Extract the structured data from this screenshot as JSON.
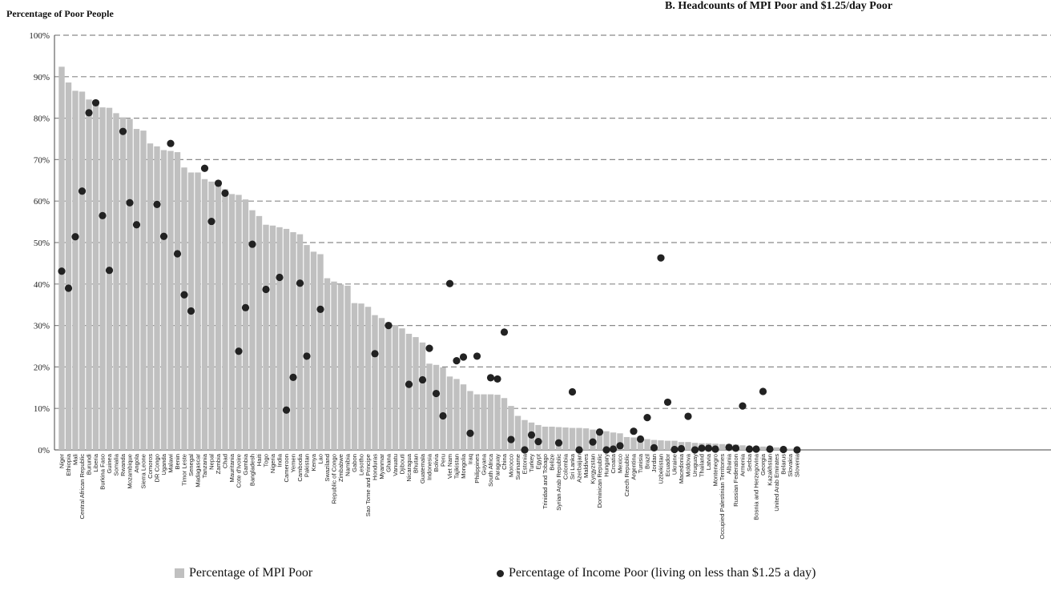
{
  "chart_data": {
    "type": "bar",
    "title": "B. Headcounts of MPI Poor and $1.25/day Poor",
    "ylabel": "Percentage of Poor People",
    "xlabel": "",
    "ylim": [
      0,
      100
    ],
    "yticks": [
      "0%",
      "10%",
      "20%",
      "30%",
      "40%",
      "50%",
      "60%",
      "70%",
      "80%",
      "90%",
      "100%"
    ],
    "grid": "horizontal dashed",
    "legend_position": "bottom",
    "bar_color": "#c0c0c0",
    "dot_color": "#222222",
    "categories": [
      "Niger",
      "Ethiopia",
      "Mali",
      "Central African Republic",
      "Burundi",
      "Liberia",
      "Burkina Faso",
      "Guinea",
      "Somalia",
      "Rwanda",
      "Mozambique",
      "Angola",
      "Sierra Leone",
      "Comoros",
      "DR Congo",
      "Uganda",
      "Malawi",
      "Benin",
      "Timor Leste",
      "Senegal",
      "Madagascar",
      "Tanzania",
      "Nepal",
      "Zambia",
      "Chad",
      "Mauritania",
      "Cote d'Ivoire",
      "Gambia",
      "Bangladesh",
      "Haiti",
      "Togo",
      "Nigeria",
      "India",
      "Cameroon",
      "Yemen",
      "Cambodia",
      "Pakistan",
      "Kenya",
      "Lao",
      "Swaziland",
      "Republic of Congo",
      "Zimbabwe",
      "Namibia",
      "Gabon",
      "Lesotho",
      "Sao Tome and Principe",
      "Honduras",
      "Myanmar",
      "Ghana",
      "Vanuatu",
      "Djibouti",
      "Nicaragua",
      "Bhutan",
      "Guatemala",
      "Indonesia",
      "Bolivia",
      "Peru",
      "Viet Nam",
      "Tajikistan",
      "Mongolia",
      "Iraq",
      "Philippines",
      "Guyana",
      "South Africa",
      "Paraguay",
      "China",
      "Morocco",
      "Suriname",
      "Estonia",
      "Turkey",
      "Egypt",
      "Trinidad and Tobago",
      "Belize",
      "Syrian Arab Republic",
      "Colombia",
      "Sri Lanka",
      "Azerbaijan",
      "Maldives",
      "Kyrgyzstan",
      "Dominican Republic",
      "Hungary",
      "Croatia",
      "Mexico",
      "Czech Republic",
      "Argentina",
      "Tunisia",
      "Brazil",
      "Jordan",
      "Uzbekistan",
      "Ecuador",
      "Ukraine",
      "Macedonia",
      "Moldova",
      "Uruguay",
      "Thailand",
      "Latvia",
      "Montenegro",
      "Occupied Palestinian Territories",
      "Albania",
      "Russian Federation",
      "Armenia",
      "Serbia",
      "Bosnia and Herzegovina",
      "Georgia",
      "Kazakhstan",
      "United Arab Emirates",
      "Belarus",
      "Slovakia",
      "Slovenia"
    ],
    "series": [
      {
        "name": "Percentage of MPI Poor",
        "type": "bar",
        "values": [
          92.4,
          88.6,
          86.6,
          86.4,
          84.5,
          83.9,
          82.6,
          82.5,
          81.2,
          80.2,
          79.8,
          77.4,
          77.0,
          73.9,
          73.2,
          72.3,
          72.1,
          71.8,
          68.1,
          66.9,
          66.9,
          65.3,
          64.7,
          64.2,
          62.9,
          61.7,
          61.5,
          60.4,
          57.8,
          56.4,
          54.3,
          54.1,
          53.7,
          53.3,
          52.5,
          52.0,
          49.4,
          47.8,
          47.2,
          41.4,
          40.6,
          39.9,
          39.6,
          35.4,
          35.3,
          34.5,
          32.5,
          31.8,
          30.8,
          30.1,
          29.3,
          28.0,
          27.2,
          25.9,
          20.8,
          20.5,
          19.9,
          17.7,
          17.1,
          15.8,
          14.2,
          13.4,
          13.4,
          13.4,
          13.3,
          12.5,
          10.6,
          8.2,
          7.2,
          6.6,
          6.0,
          5.6,
          5.6,
          5.5,
          5.4,
          5.3,
          5.3,
          5.2,
          4.9,
          4.6,
          4.5,
          4.2,
          4.0,
          3.1,
          3.0,
          2.8,
          2.6,
          2.4,
          2.3,
          2.2,
          2.2,
          1.9,
          1.9,
          1.7,
          1.6,
          1.6,
          1.5,
          1.4,
          1.4,
          1.3,
          1.1,
          0.8,
          0.8,
          0.8,
          0.6,
          0.6,
          0.4,
          0.3,
          0.0
        ]
      },
      {
        "name": "Percentage of Income Poor (living on less than $1.25 a day)",
        "type": "scatter",
        "values": [
          43.1,
          39.0,
          51.4,
          62.4,
          81.3,
          83.7,
          56.5,
          43.3,
          null,
          76.8,
          59.6,
          54.3,
          null,
          null,
          59.2,
          51.5,
          73.9,
          47.3,
          37.4,
          33.5,
          null,
          67.9,
          55.1,
          64.3,
          61.9,
          null,
          23.8,
          34.3,
          49.6,
          null,
          38.7,
          null,
          41.6,
          9.6,
          17.5,
          40.2,
          22.6,
          null,
          33.9,
          null,
          null,
          null,
          null,
          null,
          null,
          null,
          23.2,
          null,
          30.0,
          null,
          null,
          15.8,
          null,
          16.9,
          24.5,
          13.6,
          8.2,
          40.1,
          21.5,
          22.4,
          4.0,
          22.6,
          null,
          17.4,
          17.1,
          28.4,
          2.5,
          null,
          0.0,
          3.6,
          2.0,
          null,
          null,
          1.7,
          null,
          14.0,
          0.0,
          null,
          1.9,
          4.3,
          0.0,
          0.2,
          1.0,
          null,
          4.5,
          2.6,
          7.8,
          0.5,
          46.3,
          11.5,
          0.1,
          0.3,
          8.1,
          0.0,
          0.4,
          0.4,
          0.2,
          null,
          0.6,
          0.4,
          10.6,
          0.2,
          0.2,
          14.1,
          0.2,
          null,
          0.1,
          null,
          0.0
        ]
      }
    ]
  },
  "legend": {
    "mpi_label": "Percentage of MPI Poor",
    "income_label": "Percentage of Income Poor (living on less than $1.25 a day)"
  }
}
